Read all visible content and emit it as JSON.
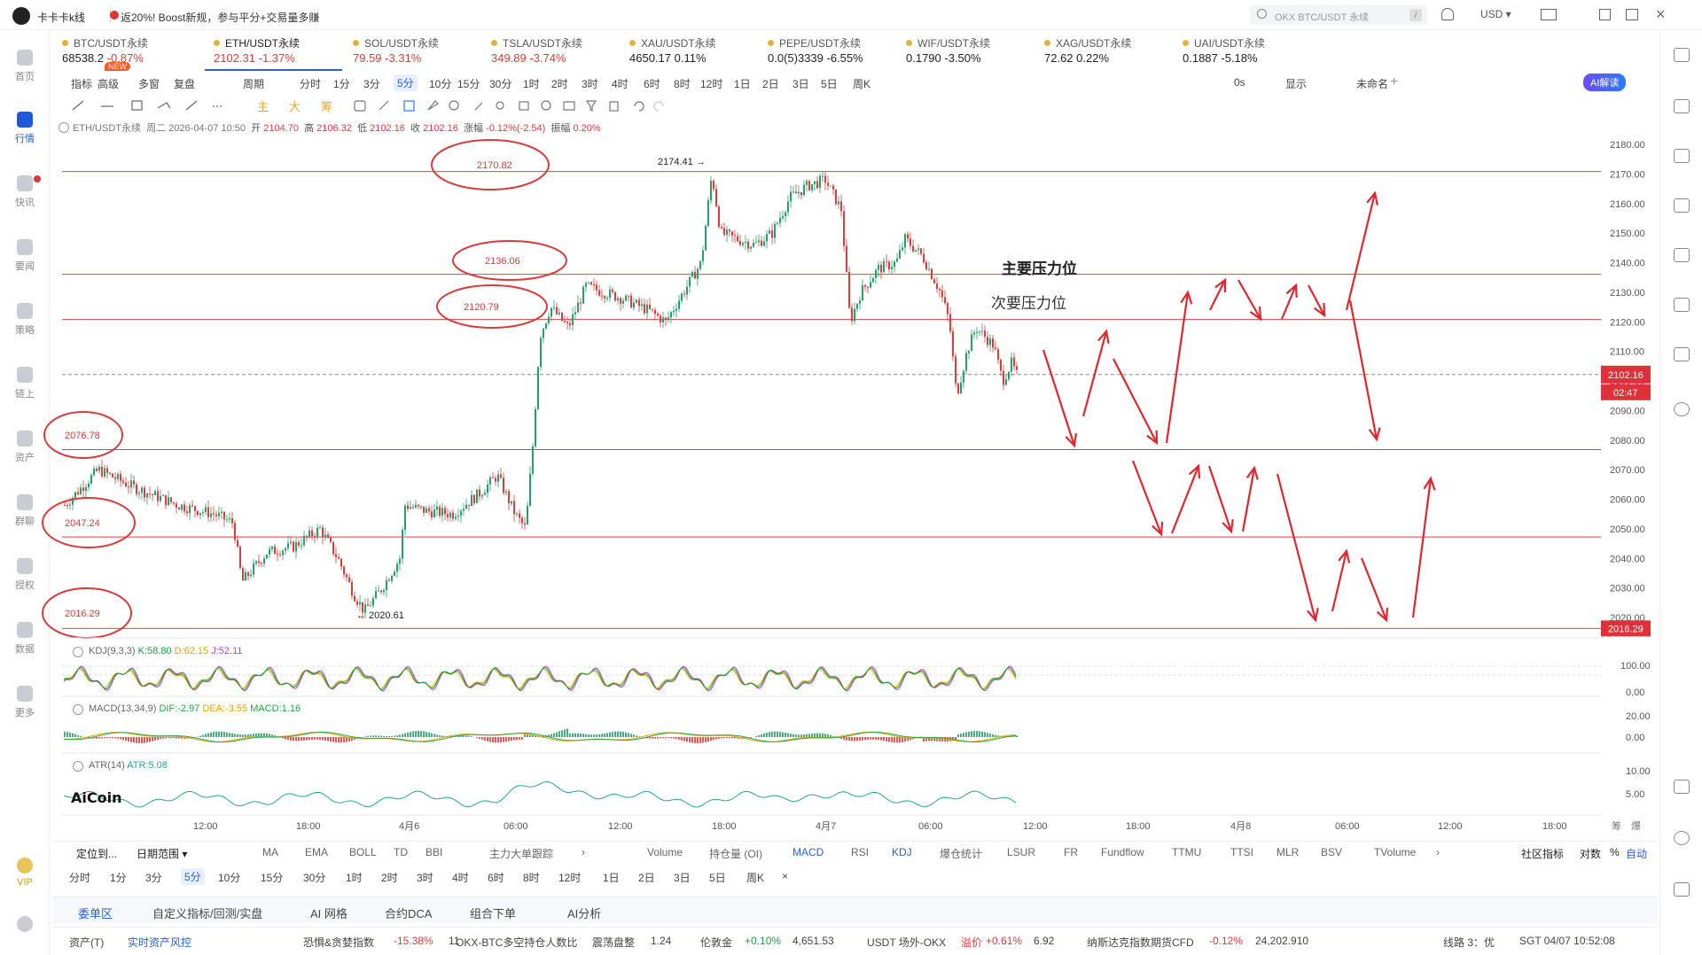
{
  "app": {
    "title": "卡卡卡k线",
    "promo": "返20%! Boost新规，参与平分+交易量多赚",
    "search_placeholder": "OKX BTC/USDT 永续",
    "currency": "USD ▾"
  },
  "sidebar": {
    "items": [
      {
        "label": "首页"
      },
      {
        "label": "行情"
      },
      {
        "label": "快讯"
      },
      {
        "label": "要闻"
      },
      {
        "label": "策略"
      },
      {
        "label": "链上"
      },
      {
        "label": "资产"
      },
      {
        "label": "群聊"
      },
      {
        "label": "授权"
      },
      {
        "label": "数据"
      },
      {
        "label": "更多"
      },
      {
        "label": "VIP"
      }
    ]
  },
  "tickers": [
    {
      "name": "BTC/USDT永续",
      "price": "68538.2",
      "change": "-0.87%",
      "dir": "down"
    },
    {
      "name": "ETH/USDT永续",
      "price": "2102.31",
      "change": "-1.37%",
      "dir": "down"
    },
    {
      "name": "SOL/USDT永续",
      "price": "79.59",
      "change": "-3.31%",
      "dir": "down"
    },
    {
      "name": "TSLA/USDT永续",
      "price": "349.89",
      "change": "-3.74%",
      "dir": "down"
    },
    {
      "name": "XAU/USDT永续",
      "price": "4650.17",
      "change": "0.11%",
      "dir": "neutral"
    },
    {
      "name": "PEPE/USDT永续",
      "price": "0.0(5)3339",
      "change": "-6.55%",
      "dir": "neutral"
    },
    {
      "name": "WIF/USDT永续",
      "price": "0.1790",
      "change": "-3.50%",
      "dir": "neutral"
    },
    {
      "name": "XAG/USDT永续",
      "price": "72.62",
      "change": "0.22%",
      "dir": "neutral"
    },
    {
      "name": "UAI/USDT永续",
      "price": "0.1887",
      "change": "-5.18%",
      "dir": "neutral"
    }
  ],
  "new_badge": "NEW",
  "toolbar": {
    "items": [
      "指标",
      "高级",
      "多窗",
      "复盘",
      "",
      "周期",
      "分时",
      "1分",
      "3分",
      "5分",
      "10分",
      "15分",
      "30分",
      "1时",
      "2时",
      "3时",
      "4时",
      "6时",
      "8时",
      "12时",
      "1日",
      "2日",
      "3日",
      "5日",
      "周K"
    ],
    "selected": "5分",
    "right": [
      "0s",
      "显示",
      "未命名",
      "AI解读"
    ]
  },
  "drawing_tools": [
    "主",
    "大",
    "筹"
  ],
  "info": {
    "symbol": "ETH/USDT永续",
    "date": "周二 2026-04-07 10:50",
    "open_label": "开",
    "open": "2104.70",
    "high_label": "高",
    "high": "2106.32",
    "low_label": "低",
    "low": "2102.16",
    "close_label": "收",
    "close": "2102.16",
    "chg_label": "涨幅",
    "chg": "-0.12%(-2.54)",
    "amp_label": "振幅",
    "amp": "0.20%"
  },
  "annotations": {
    "main_resistance": "主要压力位",
    "secondary_resistance": "次要压力位",
    "high_marker": "2174.41 →",
    "low_marker": "← 2020.61",
    "circled_levels": [
      "2170.82",
      "2136.06",
      "2120.79",
      "2076.78",
      "2047.24",
      "2016.29"
    ]
  },
  "price_axis": {
    "ticks": [
      "2180.00",
      "2170.00",
      "2160.00",
      "2150.00",
      "2140.00",
      "2130.00",
      "2120.00",
      "2110.00",
      "2100.00",
      "2090.00",
      "2080.00",
      "2070.00",
      "2060.00",
      "2050.00",
      "2040.00",
      "2030.00",
      "2020.00"
    ],
    "current_price": "2102.16",
    "countdown": "02:47",
    "low_tag": "2016.29"
  },
  "indicators": {
    "kdj": {
      "label": "KDJ(9,3,3)",
      "k": "K:58.80",
      "d": "D:62.15",
      "j": "J:52.11",
      "ticks": [
        "100.00",
        "0.00"
      ]
    },
    "macd": {
      "label": "MACD(13,34,9)",
      "dif": "DIF:-2.97",
      "dea": "DEA:-3.55",
      "macd": "MACD:1.16",
      "ticks": [
        "20.00",
        "0.00"
      ]
    },
    "atr": {
      "label": "ATR(14)",
      "atr": "ATR:5.08",
      "ticks": [
        "10.00",
        "5.00"
      ]
    }
  },
  "logo_text": "AiCoin",
  "time_axis": [
    "12:00",
    "18:00",
    "4月6",
    "06:00",
    "12:00",
    "18:00",
    "4月7",
    "06:00",
    "12:00",
    "18:00",
    "4月8",
    "06:00",
    "12:00",
    "18:00"
  ],
  "bottom_indicator_tabs": {
    "left": [
      "定位到...",
      "日期范围 ▾",
      "MA",
      "EMA",
      "BOLL",
      "TD",
      "BBI",
      "主力大单跟踪",
      "›"
    ],
    "right": [
      "Volume",
      "持仓量 (OI)",
      "MACD",
      "RSI",
      "KDJ",
      "爆仓统计",
      "LSUR",
      "FR",
      "Fundflow",
      "TTMU",
      "TTSI",
      "MLR",
      "BSV",
      "TVolume",
      "›"
    ],
    "far_right": [
      "社区指标",
      "对数",
      "%",
      "自动"
    ],
    "selected": [
      "MACD",
      "KDJ"
    ]
  },
  "period_bar": [
    "分时",
    "1分",
    "3分",
    "5分",
    "10分",
    "15分",
    "30分",
    "1时",
    "2时",
    "3时",
    "4时",
    "6时",
    "8时",
    "12时",
    "1日",
    "2日",
    "3日",
    "5日",
    "周K",
    "×"
  ],
  "period_selected": "5分",
  "panel_tabs": [
    "委单区",
    "自定义指标/回测/实盘",
    "AI 网格",
    "合约DCA",
    "组合下单",
    "AI分析"
  ],
  "status": {
    "asset": "资产(T)",
    "risk": "实时资产风控",
    "fear_greed_label": "恐惧&贪婪指数",
    "fear_greed_change": "-15.38%",
    "fear_greed_value": "11",
    "ratio_label": "OKX-BTC多空持仓人数比",
    "ratio_state": "震荡盘整",
    "ratio_value": "1.24",
    "gold_label": "伦敦金",
    "gold_change": "+0.10%",
    "gold_value": "4,651.53",
    "usdt_label": "USDT 场外-OKX",
    "usdt_premium_label": "溢价",
    "usdt_change": "+0.61%",
    "usdt_value": "6.92",
    "nasdaq_label": "纳斯达克指数期货CFD",
    "nasdaq_change": "-0.12%",
    "nasdaq_value": "24,202.910",
    "line": "线路 3：优",
    "time": "SGT 04/07 10:52:08"
  },
  "axis_extra": [
    "筹",
    "爆"
  ]
}
